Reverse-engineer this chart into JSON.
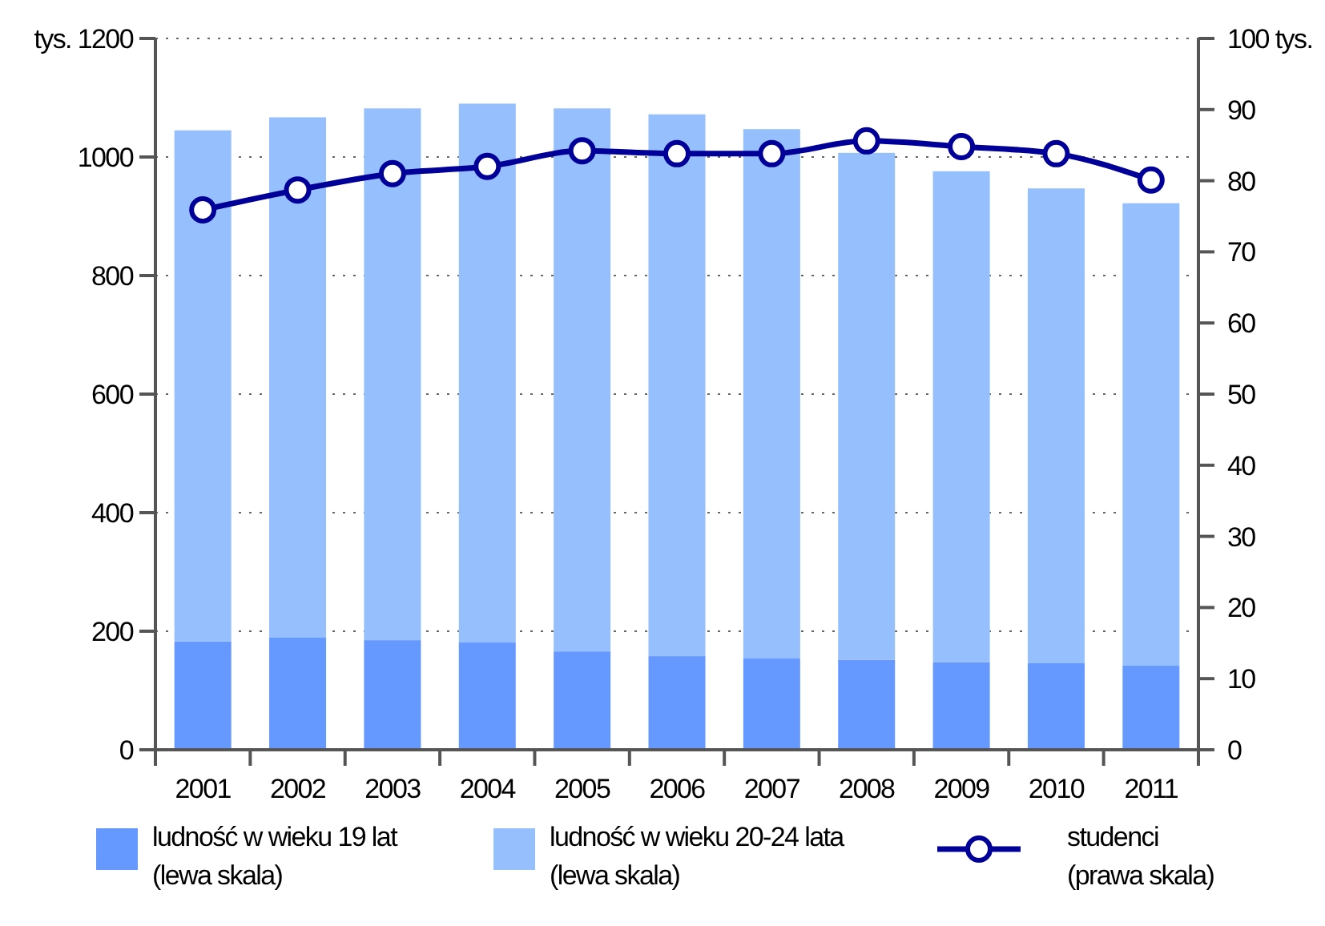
{
  "chart_data": {
    "type": "bar",
    "stacked": true,
    "categories": [
      "2001",
      "2002",
      "2003",
      "2004",
      "2005",
      "2006",
      "2007",
      "2008",
      "2009",
      "2010",
      "2011"
    ],
    "series": [
      {
        "name": "ludność w wieku 19 lat\n(lewa skala)",
        "color": "#6699ff",
        "values": [
          183,
          190,
          185,
          181,
          166,
          158,
          154,
          152,
          148,
          146,
          142
        ]
      },
      {
        "name": "ludność w wieku 20-24 lata\n(lewa skala)",
        "color": "#96bffd",
        "values": [
          862,
          877,
          897,
          909,
          916,
          914,
          893,
          855,
          828,
          801,
          780
        ]
      },
      {
        "name": "studenci\n(prawa skala)",
        "type": "line",
        "axis": "y2",
        "color": "#000099",
        "marker": "circle",
        "values": [
          75.9,
          78.7,
          81.0,
          82.0,
          84.2,
          83.8,
          83.8,
          85.6,
          84.8,
          83.8,
          80.1
        ]
      }
    ],
    "ylim": [
      0,
      1200
    ],
    "yticks": [
      0,
      200,
      400,
      600,
      800,
      1000,
      {
        "value": 1200,
        "label": "tys. 1200"
      }
    ],
    "y2lim": [
      0,
      100
    ],
    "y2ticks": [
      0,
      10,
      20,
      30,
      40,
      50,
      60,
      70,
      80,
      90,
      {
        "value": 100,
        "label": "100 tys."
      }
    ],
    "grid": "y",
    "legend": "bottom"
  }
}
